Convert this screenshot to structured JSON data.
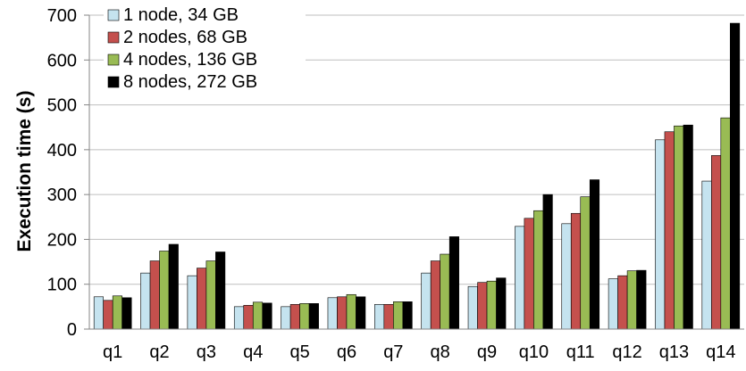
{
  "chart_data": {
    "type": "bar",
    "title": "",
    "xlabel": "",
    "ylabel": "Execution time (s)",
    "ylim": [
      0,
      700
    ],
    "yticks": [
      0,
      100,
      200,
      300,
      400,
      500,
      600,
      700
    ],
    "grid": true,
    "legend_position": "top-left",
    "categories": [
      "q1",
      "q2",
      "q3",
      "q4",
      "q5",
      "q6",
      "q7",
      "q8",
      "q9",
      "q10",
      "q11",
      "q12",
      "q13",
      "q14"
    ],
    "series": [
      {
        "name": "1 node, 34 GB",
        "color": "#c5e3ef",
        "values": [
          72,
          125,
          119,
          50,
          50,
          70,
          55,
          125,
          95,
          229,
          235,
          112,
          422,
          330
        ]
      },
      {
        "name": "2 nodes, 68 GB",
        "color": "#c4504d",
        "values": [
          64,
          152,
          136,
          53,
          55,
          72,
          55,
          152,
          104,
          247,
          258,
          119,
          440,
          387
        ]
      },
      {
        "name": "4 nodes, 136 GB",
        "color": "#99bb54",
        "values": [
          74,
          174,
          152,
          60,
          57,
          77,
          61,
          167,
          107,
          264,
          295,
          130,
          453,
          471
        ]
      },
      {
        "name": "8 nodes, 272 GB",
        "color": "#000000",
        "values": [
          70,
          189,
          172,
          58,
          57,
          72,
          61,
          206,
          114,
          300,
          333,
          131,
          455,
          682
        ]
      }
    ]
  }
}
